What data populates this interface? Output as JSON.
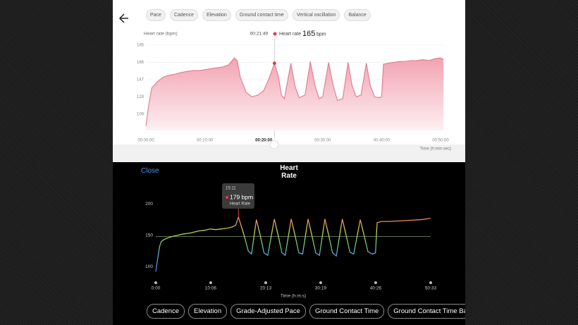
{
  "top_tabs": [
    "Pace",
    "Cadence",
    "Elevation",
    "Ground contact time",
    "Vertical oscillation",
    "Balance"
  ],
  "close_label": "Close",
  "bottom_tabs": [
    "Cadence",
    "Elevation",
    "Grade-Adjusted Pace",
    "Ground Contact Time",
    "Ground Contact Time Balance"
  ],
  "chart_data": [
    {
      "type": "area",
      "title": "Heart rate (bpm)",
      "x_label": "Time (h:min:sec)",
      "color": "#e27b90",
      "cursor": {
        "x": 21.82,
        "time": "00:21:49",
        "label": "Heart rate",
        "value": 165,
        "unit": "bpm",
        "color": "#e5394f"
      },
      "xlim": [
        0,
        50
      ],
      "ylim": [
        91,
        185
      ],
      "xticks": [
        {
          "value": 0,
          "label": "00:00:00"
        },
        {
          "value": 10,
          "label": "00:10:00"
        },
        {
          "value": 20,
          "label": "00:20:00"
        },
        {
          "value": 30,
          "label": "00:30:00"
        },
        {
          "value": 40,
          "label": "00:40:00"
        },
        {
          "value": 50,
          "label": "00:50:00"
        }
      ],
      "yticks": [
        109,
        128,
        147,
        166,
        185
      ],
      "x": [
        0,
        0.5,
        1,
        2,
        3,
        4,
        5,
        6,
        7,
        8,
        9,
        10,
        11,
        12,
        13,
        14,
        15,
        15.5,
        16,
        17,
        18,
        19,
        20,
        21,
        21.8,
        22.5,
        23,
        23.5,
        24.6,
        25.3,
        26,
        27,
        27.9,
        28.7,
        29.4,
        30,
        31,
        31.8,
        32.5,
        33.4,
        34.3,
        35,
        35.7,
        36.5,
        37.4,
        38.1,
        38.8,
        39.5,
        40,
        40.3,
        41,
        42,
        43,
        44,
        45,
        46,
        47,
        48,
        49,
        50,
        50.5
      ],
      "values": [
        96,
        120,
        138,
        145,
        150,
        152,
        153,
        155,
        156,
        157,
        157,
        158,
        159,
        160,
        161,
        163,
        171,
        168,
        150,
        133,
        128,
        130,
        135,
        150,
        165,
        150,
        130,
        126,
        165,
        140,
        127,
        130,
        167,
        140,
        126,
        128,
        166,
        140,
        124,
        126,
        166,
        140,
        128,
        130,
        165,
        140,
        128,
        127,
        128,
        164,
        165,
        166,
        167,
        167,
        168,
        168,
        169,
        168,
        170,
        171,
        169
      ]
    },
    {
      "type": "line",
      "title": "Heart Rate",
      "x_label": "Time (h:m:s)",
      "tooltip": {
        "time": "15:11",
        "value": 179,
        "value_label": "179 bpm",
        "label": "Heart Rate",
        "color": "#e5394f"
      },
      "reference_line": 148,
      "xlim": [
        0,
        50.55
      ],
      "ylim": [
        80,
        205
      ],
      "xticks": [
        {
          "value": 0,
          "label": "0:00"
        },
        {
          "value": 10.1,
          "label": "10:06"
        },
        {
          "value": 20.22,
          "label": "20:13"
        },
        {
          "value": 30.32,
          "label": "30:19"
        },
        {
          "value": 40.43,
          "label": "40:26"
        },
        {
          "value": 50.55,
          "label": "50:33"
        }
      ],
      "yticks": [
        100,
        150,
        200
      ],
      "x": [
        0,
        0.3,
        0.7,
        1,
        1.5,
        2,
        3,
        4,
        5,
        6,
        7,
        8,
        9,
        10,
        11,
        12,
        13,
        14,
        14.7,
        15.2,
        15.7,
        16.3,
        17,
        17.6,
        18.5,
        19.2,
        19.9,
        20.6,
        21.8,
        22.5,
        23.2,
        23.8,
        24.9,
        25.6,
        26.3,
        27,
        28,
        28.7,
        29.4,
        30.1,
        31.1,
        31.8,
        32.5,
        33.2,
        34.3,
        35,
        35.7,
        36.4,
        37.6,
        38.3,
        39,
        39.8,
        40.4,
        40.7,
        41.5,
        43,
        45,
        47,
        49,
        50.5
      ],
      "values": [
        92,
        110,
        132,
        140,
        143,
        145,
        148,
        150,
        152,
        153,
        155,
        157,
        158,
        160,
        159,
        160,
        161,
        163,
        166,
        179,
        165,
        148,
        125,
        120,
        175,
        150,
        122,
        118,
        176,
        150,
        122,
        118,
        176,
        150,
        122,
        120,
        176,
        150,
        122,
        118,
        176,
        150,
        122,
        117,
        176,
        150,
        123,
        120,
        175,
        150,
        124,
        120,
        122,
        170,
        172,
        172,
        173,
        174,
        175,
        177
      ]
    }
  ]
}
